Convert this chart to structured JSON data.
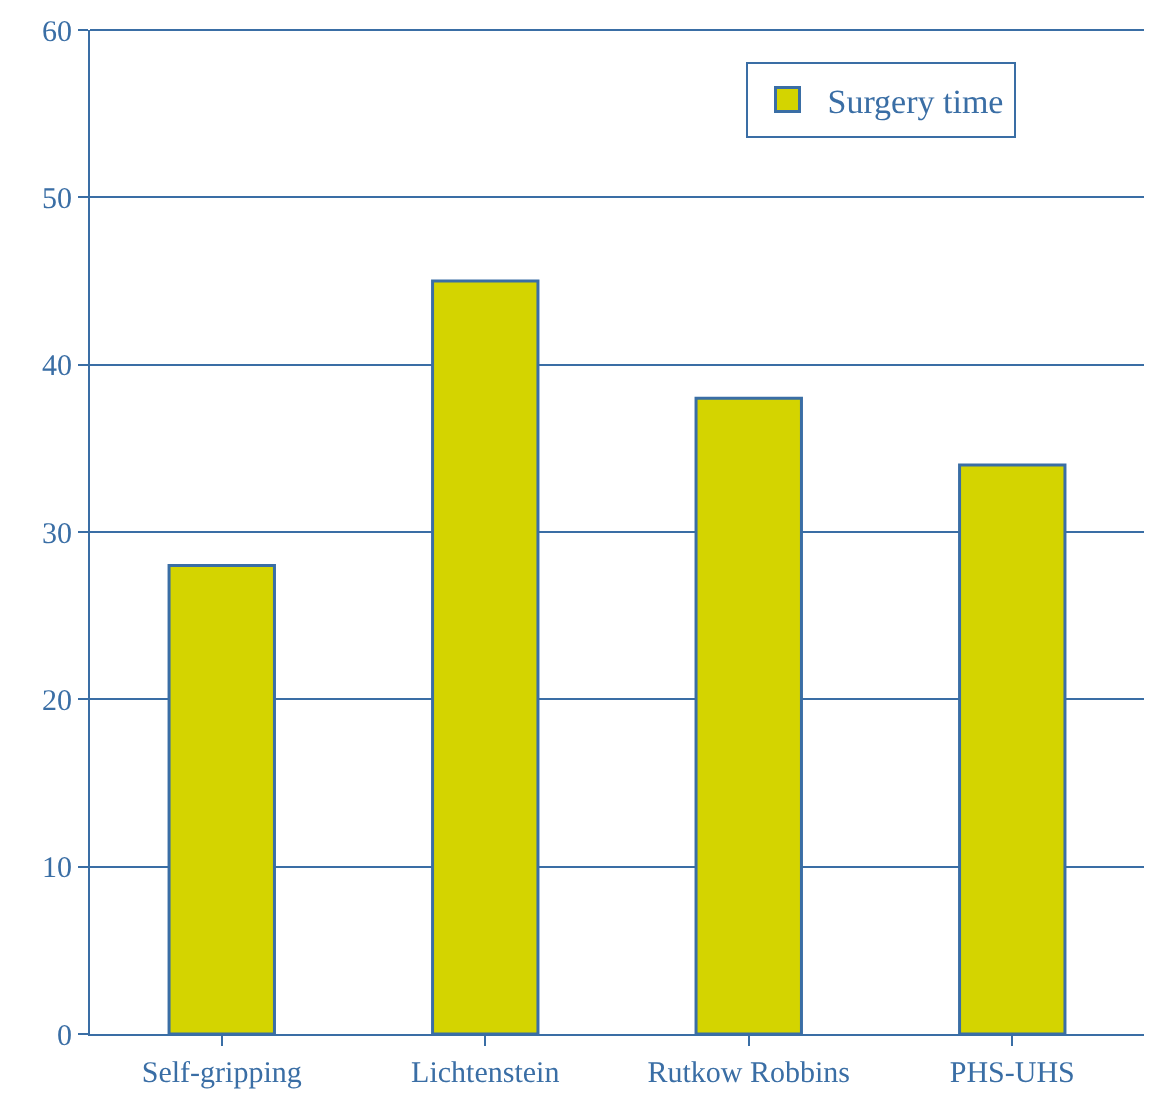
{
  "chart_data": {
    "type": "bar",
    "categories": [
      "Self-gripping",
      "Lichtenstein",
      "Rutkow Robbins",
      "PHS-UHS"
    ],
    "series": [
      {
        "name": "Surgery time",
        "color": "#d4d400",
        "values": [
          28,
          45,
          38,
          34
        ]
      }
    ],
    "ylim": [
      0,
      60
    ],
    "yticks": [
      0,
      10,
      20,
      30,
      40,
      50,
      60
    ],
    "grid": "y",
    "legend": "top right"
  }
}
